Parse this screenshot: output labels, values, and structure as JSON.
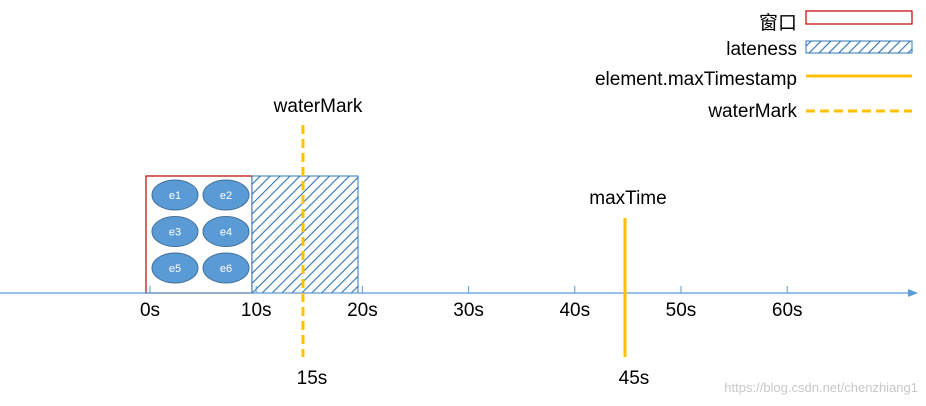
{
  "legend": {
    "items": [
      {
        "label": "窗口"
      },
      {
        "label": "lateness"
      },
      {
        "label": "element.maxTimestamp"
      },
      {
        "label": "waterMark"
      }
    ]
  },
  "axis": {
    "ticks": [
      "0s",
      "10s",
      "20s",
      "30s",
      "40s",
      "50s",
      "60s"
    ]
  },
  "window": {
    "elements": [
      "e1",
      "e2",
      "e3",
      "e4",
      "e5",
      "e6"
    ]
  },
  "water_mark": {
    "label": "waterMark",
    "time": "15s"
  },
  "max_time": {
    "label": "maxTime",
    "time": "45s"
  },
  "credit": "https://blog.csdn.net/chenzhiang1"
}
